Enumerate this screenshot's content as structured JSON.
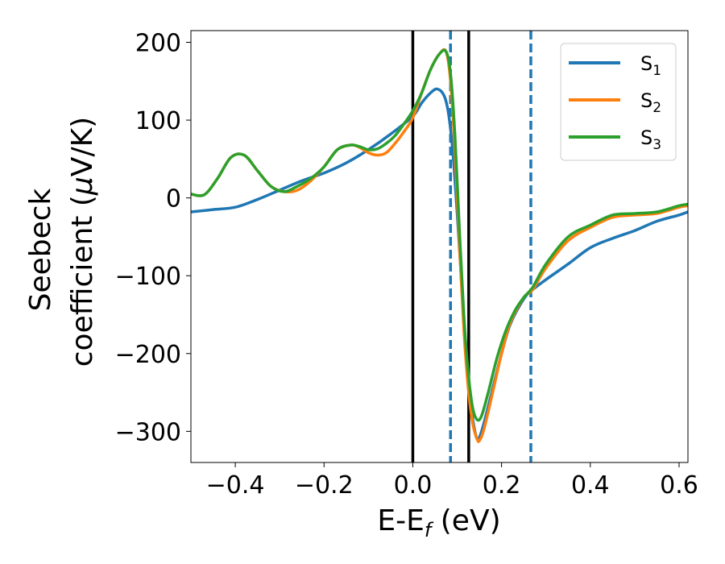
{
  "chart_data": {
    "type": "line",
    "xlabel": "E-E",
    "xlabel_sub": "f",
    "xlabel_unit": " (eV)",
    "ylabel_line1": "Seebeck",
    "ylabel_line2": "coefficient  (",
    "ylabel_mu": "μ",
    "ylabel_unit": "V/K)",
    "xlim": [
      -0.5,
      0.62
    ],
    "ylim": [
      -340,
      215
    ],
    "xticks": [
      -0.4,
      -0.2,
      0.0,
      0.2,
      0.4,
      0.6
    ],
    "xtick_labels": [
      "−0.4",
      "−0.2",
      "0.0",
      "0.2",
      "0.4",
      "0.6"
    ],
    "yticks": [
      -300,
      -200,
      -100,
      0,
      100,
      200
    ],
    "ytick_labels": [
      "−300",
      "−200",
      "−100",
      "0",
      "100",
      "200"
    ],
    "grid": false,
    "legend_position": "top-right",
    "vlines": [
      {
        "x": 0.0,
        "style": "solid",
        "color": "#000000"
      },
      {
        "x": 0.126,
        "style": "solid",
        "color": "#000000"
      },
      {
        "x": 0.085,
        "style": "dashed",
        "color": "#1f77b4"
      },
      {
        "x": 0.266,
        "style": "dashed",
        "color": "#1f77b4"
      }
    ],
    "series": [
      {
        "name": "S",
        "sub": "1",
        "color": "#1f77b4",
        "x": [
          -0.5,
          -0.45,
          -0.4,
          -0.35,
          -0.3,
          -0.25,
          -0.2,
          -0.15,
          -0.1,
          -0.05,
          0.0,
          0.02,
          0.04,
          0.055,
          0.07,
          0.08,
          0.09,
          0.1,
          0.11,
          0.12,
          0.13,
          0.14,
          0.145,
          0.15,
          0.16,
          0.18,
          0.2,
          0.22,
          0.25,
          0.27,
          0.3,
          0.35,
          0.4,
          0.45,
          0.5,
          0.55,
          0.6,
          0.62
        ],
        "y": [
          -18,
          -15,
          -12,
          -2,
          10,
          22,
          32,
          45,
          62,
          82,
          105,
          122,
          135,
          140,
          132,
          110,
          60,
          -20,
          -110,
          -200,
          -265,
          -300,
          -310,
          -308,
          -290,
          -245,
          -200,
          -162,
          -130,
          -118,
          -105,
          -85,
          -64,
          -52,
          -42,
          -30,
          -22,
          -18
        ]
      },
      {
        "name": "S",
        "sub": "2",
        "color": "#ff7f0e",
        "x": [
          -0.5,
          -0.47,
          -0.44,
          -0.41,
          -0.38,
          -0.35,
          -0.32,
          -0.29,
          -0.26,
          -0.23,
          -0.2,
          -0.17,
          -0.14,
          -0.12,
          -0.1,
          -0.08,
          -0.06,
          -0.04,
          -0.02,
          0.0,
          0.02,
          0.04,
          0.06,
          0.075,
          0.085,
          0.095,
          0.105,
          0.115,
          0.125,
          0.135,
          0.145,
          0.15,
          0.16,
          0.18,
          0.2,
          0.22,
          0.25,
          0.27,
          0.3,
          0.35,
          0.4,
          0.45,
          0.5,
          0.55,
          0.6,
          0.62
        ],
        "y": [
          5,
          4,
          25,
          52,
          55,
          35,
          15,
          8,
          10,
          22,
          40,
          62,
          68,
          65,
          58,
          55,
          58,
          70,
          85,
          103,
          135,
          165,
          185,
          188,
          150,
          60,
          -60,
          -170,
          -245,
          -290,
          -310,
          -312,
          -298,
          -250,
          -200,
          -160,
          -128,
          -118,
          -90,
          -55,
          -38,
          -25,
          -22,
          -20,
          -12,
          -10
        ]
      },
      {
        "name": "S",
        "sub": "3",
        "color": "#2ca02c",
        "x": [
          -0.5,
          -0.47,
          -0.44,
          -0.41,
          -0.38,
          -0.35,
          -0.32,
          -0.29,
          -0.26,
          -0.23,
          -0.2,
          -0.17,
          -0.14,
          -0.12,
          -0.1,
          -0.08,
          -0.06,
          -0.04,
          -0.02,
          0.0,
          0.02,
          0.04,
          0.06,
          0.075,
          0.085,
          0.095,
          0.105,
          0.115,
          0.125,
          0.135,
          0.145,
          0.155,
          0.17,
          0.19,
          0.21,
          0.23,
          0.25,
          0.27,
          0.3,
          0.35,
          0.4,
          0.45,
          0.5,
          0.55,
          0.6,
          0.62
        ],
        "y": [
          5,
          4,
          25,
          52,
          55,
          35,
          15,
          8,
          15,
          25,
          40,
          62,
          68,
          66,
          62,
          63,
          70,
          80,
          95,
          112,
          135,
          165,
          185,
          188,
          160,
          80,
          -40,
          -150,
          -225,
          -270,
          -285,
          -280,
          -250,
          -205,
          -170,
          -145,
          -128,
          -115,
          -85,
          -50,
          -35,
          -22,
          -20,
          -18,
          -10,
          -8
        ]
      }
    ]
  }
}
